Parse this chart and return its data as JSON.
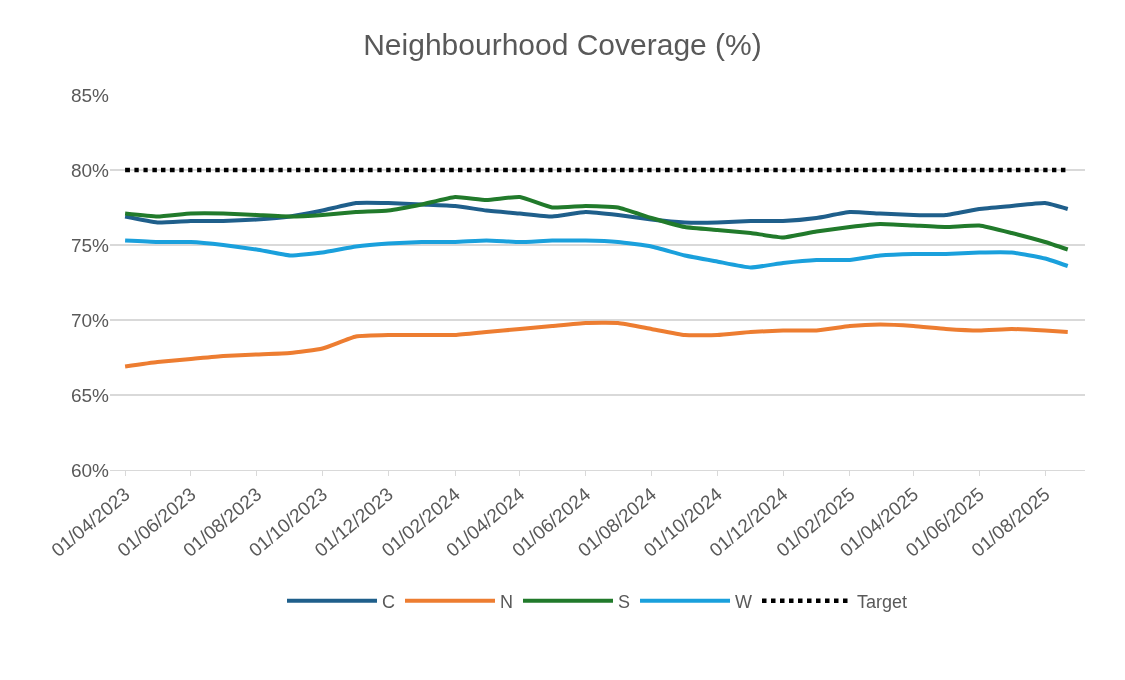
{
  "chart_data": {
    "type": "line",
    "title": "Neighbourhood Coverage (%)",
    "x": [
      "2023-04-01",
      "2023-05-01",
      "2023-06-01",
      "2023-07-01",
      "2023-08-01",
      "2023-09-01",
      "2023-10-01",
      "2023-11-01",
      "2023-12-01",
      "2024-01-01",
      "2024-02-01",
      "2024-03-01",
      "2024-04-01",
      "2024-05-01",
      "2024-06-01",
      "2024-07-01",
      "2024-08-01",
      "2024-09-01",
      "2024-10-01",
      "2024-11-01",
      "2024-12-01",
      "2025-01-01",
      "2025-02-01",
      "2025-03-01",
      "2025-04-01",
      "2025-05-01",
      "2025-06-01",
      "2025-07-01",
      "2025-08-01",
      "2025-08-22"
    ],
    "series": [
      {
        "name": "C",
        "color": "#1f5f8b",
        "values": [
          76.9,
          76.5,
          76.6,
          76.6,
          76.7,
          76.9,
          77.3,
          77.8,
          77.8,
          77.7,
          77.6,
          77.3,
          77.1,
          76.9,
          77.2,
          77.0,
          76.7,
          76.5,
          76.5,
          76.6,
          76.6,
          76.8,
          77.2,
          77.1,
          77.0,
          77.0,
          77.4,
          77.6,
          77.8,
          77.4
        ]
      },
      {
        "name": "N",
        "color": "#ed7d31",
        "values": [
          66.9,
          67.2,
          67.4,
          67.6,
          67.7,
          67.8,
          68.1,
          68.9,
          69.0,
          69.0,
          69.0,
          69.2,
          69.4,
          69.6,
          69.8,
          69.8,
          69.4,
          69.0,
          69.0,
          69.2,
          69.3,
          69.3,
          69.6,
          69.7,
          69.6,
          69.4,
          69.3,
          69.4,
          69.3,
          69.2
        ]
      },
      {
        "name": "S",
        "color": "#217a2b",
        "values": [
          77.1,
          76.9,
          77.1,
          77.1,
          77.0,
          76.9,
          77.0,
          77.2,
          77.3,
          77.7,
          78.2,
          78.0,
          78.2,
          77.5,
          77.6,
          77.5,
          76.8,
          76.2,
          76.0,
          75.8,
          75.5,
          75.9,
          76.2,
          76.4,
          76.3,
          76.2,
          76.3,
          75.8,
          75.2,
          74.7
        ]
      },
      {
        "name": "W",
        "color": "#1aa0dc",
        "values": [
          75.3,
          75.2,
          75.2,
          75.0,
          74.7,
          74.3,
          74.5,
          74.9,
          75.1,
          75.2,
          75.2,
          75.3,
          75.2,
          75.3,
          75.3,
          75.2,
          74.9,
          74.3,
          73.9,
          73.5,
          73.8,
          74.0,
          74.0,
          74.3,
          74.4,
          74.4,
          74.5,
          74.5,
          74.1,
          73.6
        ]
      },
      {
        "name": "Target",
        "color": "#000000",
        "line_style": "dotted",
        "values": [
          80,
          80,
          80,
          80,
          80,
          80,
          80,
          80,
          80,
          80,
          80,
          80,
          80,
          80,
          80,
          80,
          80,
          80,
          80,
          80,
          80,
          80,
          80,
          80,
          80,
          80,
          80,
          80,
          80,
          80
        ]
      }
    ],
    "xlim": [
      "2023-03-18",
      "2025-09-07"
    ],
    "xticks": [
      {
        "value": "2023-04-01",
        "label": "01/04/2023"
      },
      {
        "value": "2023-06-01",
        "label": "01/06/2023"
      },
      {
        "value": "2023-08-01",
        "label": "01/08/2023"
      },
      {
        "value": "2023-10-01",
        "label": "01/10/2023"
      },
      {
        "value": "2023-12-01",
        "label": "01/12/2023"
      },
      {
        "value": "2024-02-01",
        "label": "01/02/2024"
      },
      {
        "value": "2024-04-01",
        "label": "01/04/2024"
      },
      {
        "value": "2024-06-01",
        "label": "01/06/2024"
      },
      {
        "value": "2024-08-01",
        "label": "01/08/2024"
      },
      {
        "value": "2024-10-01",
        "label": "01/10/2024"
      },
      {
        "value": "2024-12-01",
        "label": "01/12/2024"
      },
      {
        "value": "2025-02-01",
        "label": "01/02/2025"
      },
      {
        "value": "2025-04-01",
        "label": "01/04/2025"
      },
      {
        "value": "2025-06-01",
        "label": "01/06/2025"
      },
      {
        "value": "2025-08-01",
        "label": "01/08/2025"
      }
    ],
    "ylim": [
      60,
      85
    ],
    "yticks": [
      {
        "value": 60,
        "label": "60%"
      },
      {
        "value": 65,
        "label": "65%"
      },
      {
        "value": 70,
        "label": "70%"
      },
      {
        "value": 75,
        "label": "75%"
      },
      {
        "value": 80,
        "label": "80%"
      },
      {
        "value": 85,
        "label": "85%"
      }
    ],
    "grid": "y",
    "legend": "bottom",
    "line_style": "solid",
    "marker": "none"
  }
}
